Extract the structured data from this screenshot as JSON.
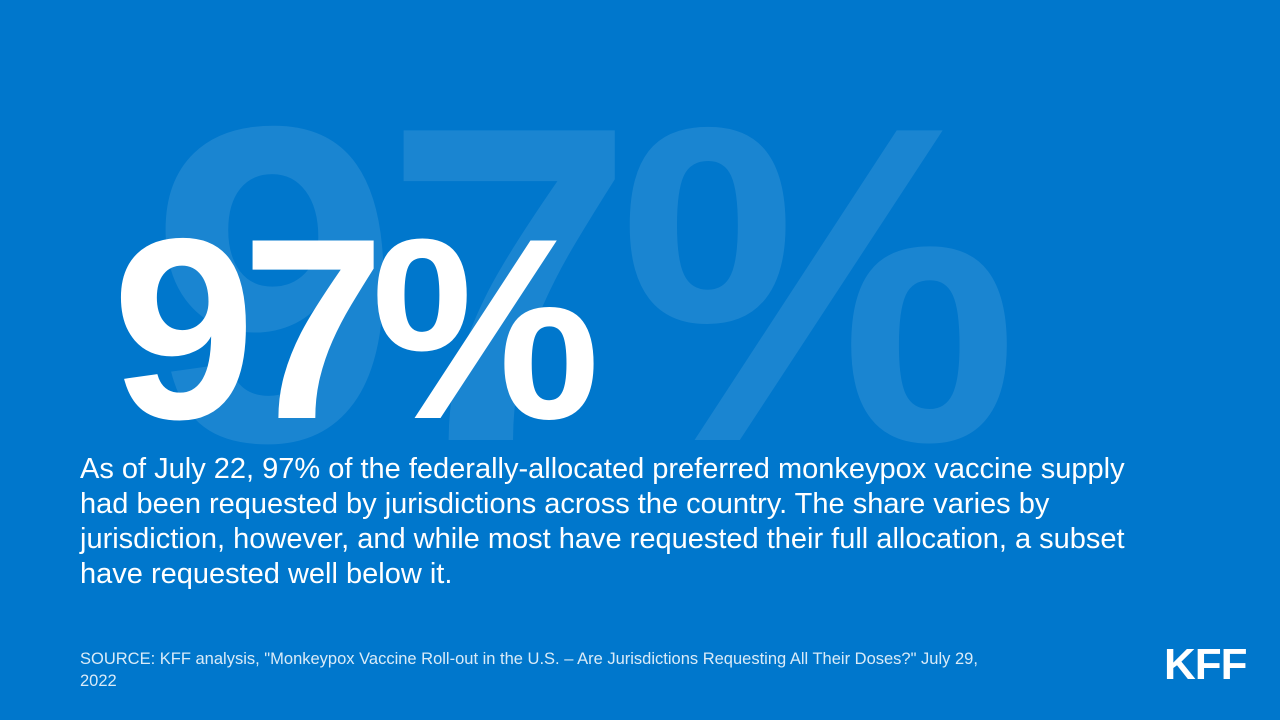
{
  "stat": {
    "background": "97%",
    "value": "97%"
  },
  "description": "As of July 22, 97% of the federally-allocated preferred monkeypox vaccine supply had been requested by jurisdictions across the country. The share varies by jurisdiction, however, and while most have requested their full allocation, a subset have requested well below it.",
  "source": "SOURCE: KFF analysis, \"Monkeypox Vaccine Roll-out in the U.S. – Are Jurisdictions Requesting All Their Doses?\"  July 29, 2022",
  "logo": "KFF",
  "colors": {
    "background": "#0077CC",
    "text": "#FFFFFF"
  }
}
